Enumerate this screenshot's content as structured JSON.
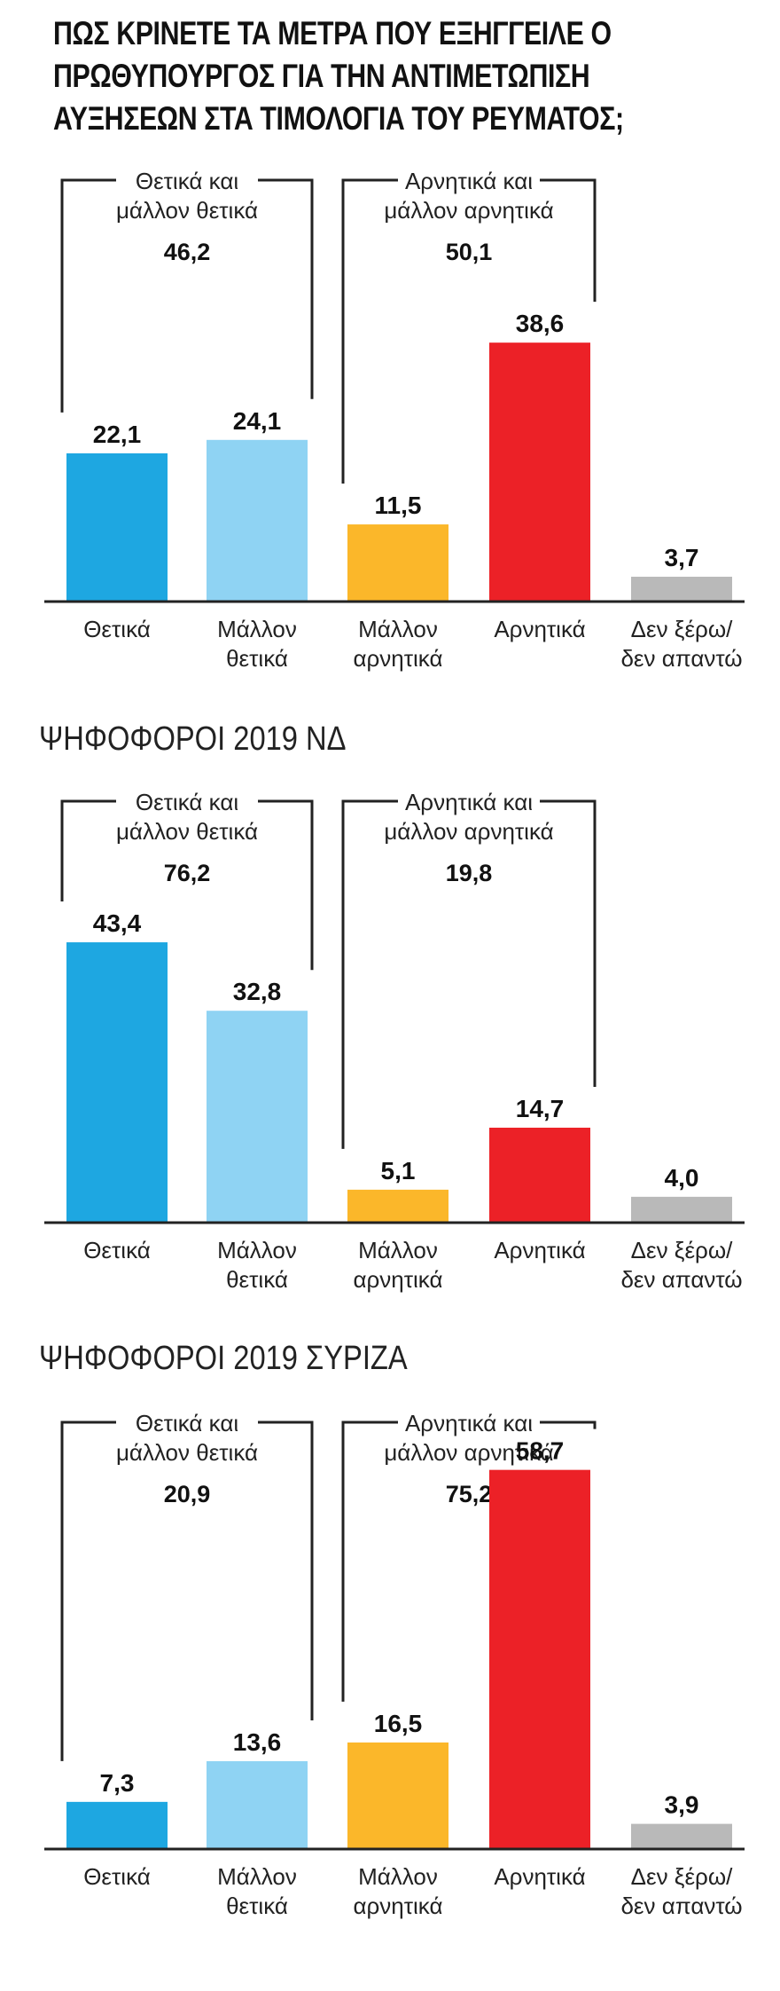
{
  "title": "ΠΩΣ ΚΡΙΝΕΤΕ ΤΑ ΜΕΤΡΑ ΠΟΥ ΕΞΗΓΓΕΙΛΕ Ο ΠΡΩΘΥΠΟΥΡΓΟΣ ΓΙΑ ΤΗΝ ΑΝΤΙΜΕΤΩΠΙΣΗ ΑΥΞΗΣΕΩΝ ΣΤΑ ΤΙΜΟΛΟΓΙΑ ΤΟΥ ΡΕΥΜΑΤΟΣ;",
  "colors": {
    "positive": "#1ea7e1",
    "rather_positive": "#8fd3f3",
    "rather_negative": "#fbb72a",
    "negative": "#ec2127",
    "dont_know": "#b9b9b9"
  },
  "chart_data": [
    {
      "type": "bar",
      "title": "",
      "categories": [
        [
          "Θετικά"
        ],
        [
          "Μάλλον",
          "θετικά"
        ],
        [
          "Μάλλον",
          "αρνητικά"
        ],
        [
          "Αρνητικά"
        ],
        [
          "Δεν ξέρω/",
          "δεν απαντώ"
        ]
      ],
      "values": [
        22.1,
        24.1,
        11.5,
        38.6,
        3.7
      ],
      "value_labels": [
        "22,1",
        "24,1",
        "11,5",
        "38,6",
        "3,7"
      ],
      "groups": [
        {
          "label": [
            "Θετικά και",
            "μάλλον θετικά"
          ],
          "total": "46,2",
          "from": 0,
          "to": 1
        },
        {
          "label": [
            "Αρνητικά και",
            "μάλλον αρνητικά"
          ],
          "total": "50,1",
          "from": 2,
          "to": 3
        }
      ]
    },
    {
      "type": "bar",
      "title": "ΨΗΦΟΦΟΡΟΙ 2019 ΝΔ",
      "categories": [
        [
          "Θετικά"
        ],
        [
          "Μάλλον",
          "θετικά"
        ],
        [
          "Μάλλον",
          "αρνητικά"
        ],
        [
          "Αρνητικά"
        ],
        [
          "Δεν ξέρω/",
          "δεν απαντώ"
        ]
      ],
      "values": [
        43.4,
        32.8,
        5.1,
        14.7,
        4.0
      ],
      "value_labels": [
        "43,4",
        "32,8",
        "5,1",
        "14,7",
        "4,0"
      ],
      "groups": [
        {
          "label": [
            "Θετικά και",
            "μάλλον θετικά"
          ],
          "total": "76,2",
          "from": 0,
          "to": 1
        },
        {
          "label": [
            "Αρνητικά και",
            "μάλλον αρνητικά"
          ],
          "total": "19,8",
          "from": 2,
          "to": 3
        }
      ]
    },
    {
      "type": "bar",
      "title": "ΨΗΦΟΦΟΡΟΙ 2019 ΣΥΡΙΖΑ",
      "categories": [
        [
          "Θετικά"
        ],
        [
          "Μάλλον",
          "θετικά"
        ],
        [
          "Μάλλον",
          "αρνητικά"
        ],
        [
          "Αρνητικά"
        ],
        [
          "Δεν ξέρω/",
          "δεν απαντώ"
        ]
      ],
      "values": [
        7.3,
        13.6,
        16.5,
        58.7,
        3.9
      ],
      "value_labels": [
        "7,3",
        "13,6",
        "16,5",
        "58,7",
        "3,9"
      ],
      "groups": [
        {
          "label": [
            "Θετικά και",
            "μάλλον θετικά"
          ],
          "total": "20,9",
          "from": 0,
          "to": 1
        },
        {
          "label": [
            "Αρνητικά και",
            "μάλλον αρνητικά"
          ],
          "total": "75,2",
          "from": 2,
          "to": 3
        }
      ]
    }
  ]
}
